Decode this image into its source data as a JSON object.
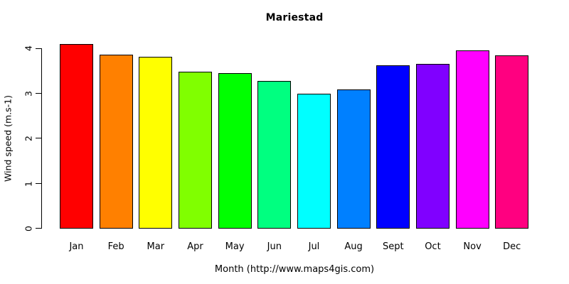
{
  "chart_data": {
    "type": "bar",
    "title": "Mariestad",
    "xlabel": "Month (http://www.maps4gis.com)",
    "ylabel": "Wind speed (m.s-1)",
    "categories": [
      "Jan",
      "Feb",
      "Mar",
      "Apr",
      "May",
      "Jun",
      "Jul",
      "Aug",
      "Sept",
      "Oct",
      "Nov",
      "Dec"
    ],
    "values": [
      4.1,
      3.87,
      3.82,
      3.48,
      3.46,
      3.28,
      3.0,
      3.09,
      3.62,
      3.66,
      3.96,
      3.85
    ],
    "bar_colors": [
      "#FF0000",
      "#FF8000",
      "#FFFF00",
      "#80FF00",
      "#00FF00",
      "#00FF80",
      "#00FFFF",
      "#0080FF",
      "#0000FF",
      "#8000FF",
      "#FF00FF",
      "#FF0080"
    ],
    "bar_border_color": "#000000",
    "ylim": [
      0,
      4
    ],
    "yticks": [
      "0",
      "1",
      "2",
      "3",
      "4"
    ],
    "grid": false,
    "legend_position": "none",
    "background_color": "#FFFFFF",
    "text_color": "#000000"
  }
}
